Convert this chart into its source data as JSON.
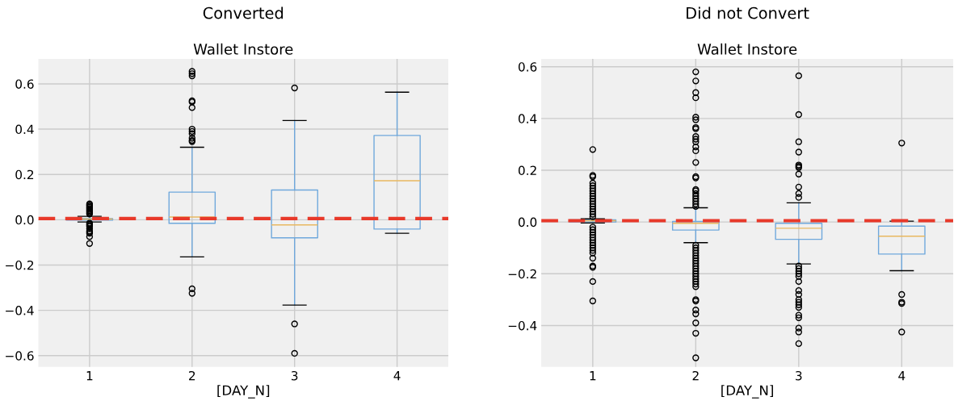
{
  "chart_data": [
    {
      "type": "box",
      "title": "Converted",
      "subtitle": "Wallet Instore",
      "xlabel": "[DAY_N]",
      "categories": [
        "1",
        "2",
        "3",
        "4"
      ],
      "series": [
        {
          "color": "#6fa8dc",
          "boxes": [
            {
              "low": -0.01,
              "q1": -0.002,
              "median": 0.003,
              "q3": 0.005,
              "high": 0.015,
              "outliers": [
                0.07,
                0.065,
                0.06,
                0.055,
                0.05,
                0.045,
                0.04,
                0.035,
                0.03,
                0.025,
                -0.015,
                -0.02,
                -0.025,
                -0.03,
                -0.04,
                -0.05,
                -0.055,
                -0.06,
                -0.075,
                -0.105
              ]
            },
            {
              "low": -0.164,
              "q1": -0.016,
              "median": 0.012,
              "q3": 0.122,
              "high": 0.32,
              "outliers": [
                0.655,
                0.645,
                0.635,
                0.525,
                0.52,
                0.495,
                0.4,
                0.39,
                0.38,
                0.36,
                0.35,
                0.345,
                -0.305,
                -0.325
              ]
            },
            {
              "low": -0.377,
              "q1": -0.08,
              "median": -0.023,
              "q3": 0.131,
              "high": 0.438,
              "outliers": [
                0.582,
                -0.46,
                -0.59
              ]
            },
            {
              "low": -0.06,
              "q1": -0.041,
              "median": 0.172,
              "q3": 0.372,
              "high": 0.563
            }
          ]
        }
      ],
      "ylim": [
        -0.65,
        0.71
      ],
      "yticks": [
        {
          "value": -0.6,
          "label": "−0.6"
        },
        {
          "value": -0.4,
          "label": "−0.4"
        },
        {
          "value": -0.2,
          "label": "−0.2"
        },
        {
          "value": 0.0,
          "label": "0.0"
        },
        {
          "value": 0.2,
          "label": "0.2"
        },
        {
          "value": 0.4,
          "label": "0.4"
        },
        {
          "value": 0.6,
          "label": "0.6"
        }
      ],
      "grid": true,
      "ref_lines": [
        {
          "axis": "y",
          "value": 0.005,
          "color": "#e8392a",
          "line_style": "dashed"
        }
      ]
    },
    {
      "type": "box",
      "title": "Did not Convert",
      "subtitle": "Wallet Instore",
      "xlabel": "[DAY_N]",
      "categories": [
        "1",
        "2",
        "3",
        "4"
      ],
      "series": [
        {
          "color": "#6fa8dc",
          "boxes": [
            {
              "low": -0.004,
              "q1": 0.0,
              "median": 0.005,
              "q3": 0.008,
              "high": 0.012,
              "outliers": [
                0.28,
                0.18,
                0.175,
                0.15,
                0.14,
                0.13,
                0.12,
                0.11,
                0.1,
                0.09,
                0.08,
                0.07,
                0.06,
                0.05,
                0.04,
                0.03,
                0.02,
                -0.02,
                -0.03,
                -0.04,
                -0.05,
                -0.06,
                -0.07,
                -0.08,
                -0.09,
                -0.1,
                -0.11,
                -0.12,
                -0.14,
                -0.17,
                -0.175,
                -0.23,
                -0.305
              ]
            },
            {
              "low": -0.08,
              "q1": -0.031,
              "median": -0.005,
              "q3": 0.002,
              "high": 0.055,
              "outliers": [
                0.58,
                0.545,
                0.5,
                0.48,
                0.405,
                0.395,
                0.365,
                0.36,
                0.33,
                0.32,
                0.31,
                0.29,
                0.275,
                0.23,
                0.175,
                0.17,
                0.125,
                0.12,
                0.11,
                0.1,
                0.09,
                0.08,
                0.07,
                0.06,
                -0.09,
                -0.1,
                -0.11,
                -0.12,
                -0.13,
                -0.14,
                -0.15,
                -0.16,
                -0.17,
                -0.18,
                -0.19,
                -0.2,
                -0.21,
                -0.22,
                -0.23,
                -0.24,
                -0.25,
                -0.3,
                -0.305,
                -0.34,
                -0.355,
                -0.39,
                -0.43,
                -0.525
              ]
            },
            {
              "low": -0.162,
              "q1": -0.067,
              "median": -0.024,
              "q3": -0.005,
              "high": 0.074,
              "outliers": [
                0.565,
                0.415,
                0.31,
                0.27,
                0.22,
                0.215,
                0.21,
                0.185,
                0.135,
                0.11,
                0.095,
                -0.17,
                -0.18,
                -0.19,
                -0.2,
                -0.21,
                -0.23,
                -0.265,
                -0.28,
                -0.3,
                -0.31,
                -0.32,
                -0.33,
                -0.36,
                -0.37,
                -0.41,
                -0.425,
                -0.47
              ]
            },
            {
              "low": -0.188,
              "q1": -0.124,
              "median": -0.055,
              "q3": -0.016,
              "high": 0.003,
              "outliers": [
                0.305,
                -0.28,
                -0.31,
                -0.315,
                -0.425
              ]
            }
          ]
        }
      ],
      "ylim": [
        -0.56,
        0.63
      ],
      "yticks": [
        {
          "value": -0.4,
          "label": "−0.4"
        },
        {
          "value": -0.2,
          "label": "−0.2"
        },
        {
          "value": 0.0,
          "label": "0.0"
        },
        {
          "value": 0.2,
          "label": "0.2"
        },
        {
          "value": 0.4,
          "label": "0.4"
        },
        {
          "value": 0.6,
          "label": "0.6"
        }
      ],
      "grid": true,
      "ref_lines": [
        {
          "axis": "y",
          "value": 0.005,
          "color": "#e8392a",
          "line_style": "dashed"
        }
      ]
    }
  ]
}
